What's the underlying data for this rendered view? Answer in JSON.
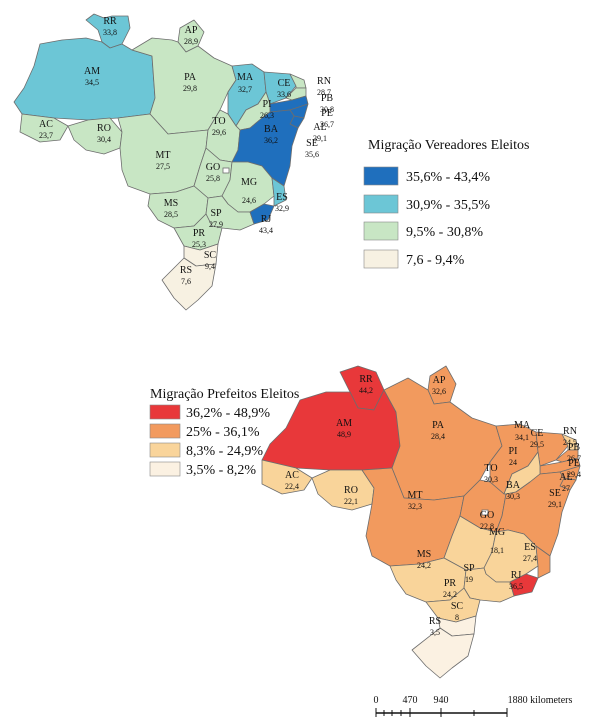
{
  "map1": {
    "title": "Migração Vereadores Eleitos",
    "colors": [
      "#1f6fbd",
      "#6cc6d6",
      "#c8e6c4",
      "#f7f1e2"
    ],
    "legend": [
      {
        "label": "35,6% - 43,4%",
        "color": "#1f6fbd"
      },
      {
        "label": "30,9% - 35,5%",
        "color": "#6cc6d6"
      },
      {
        "label": "9,5% - 30,8%",
        "color": "#c8e6c4"
      },
      {
        "label": "7,6 - 9,4%",
        "color": "#f7f1e2"
      }
    ],
    "states": {
      "RR": {
        "value": "33,8",
        "cls": 1
      },
      "AP": {
        "value": "28,9",
        "cls": 2
      },
      "AM": {
        "value": "34,5",
        "cls": 1
      },
      "PA": {
        "value": "29,8",
        "cls": 2
      },
      "MA": {
        "value": "32,7",
        "cls": 1
      },
      "CE": {
        "value": "33,6",
        "cls": 1
      },
      "RN": {
        "value": "28,7",
        "cls": 2
      },
      "PB": {
        "value": "30,8",
        "cls": 2
      },
      "PE": {
        "value": "36,7",
        "cls": 0
      },
      "AL": {
        "value": "39,1",
        "cls": 0
      },
      "SE": {
        "value": "35,6",
        "cls": 0
      },
      "PI": {
        "value": "26,3",
        "cls": 2
      },
      "AC": {
        "value": "23,7",
        "cls": 2
      },
      "RO": {
        "value": "30,4",
        "cls": 2
      },
      "MT": {
        "value": "27,5",
        "cls": 2
      },
      "TO": {
        "value": "29,6",
        "cls": 2
      },
      "BA": {
        "value": "36,2",
        "cls": 0
      },
      "GO": {
        "value": "25,8",
        "cls": 2
      },
      "MG": {
        "value": "24,6",
        "cls": 2
      },
      "ES": {
        "value": "32,9",
        "cls": 1
      },
      "MS": {
        "value": "28,5",
        "cls": 2
      },
      "SP": {
        "value": "27,9",
        "cls": 2
      },
      "RJ": {
        "value": "43,4",
        "cls": 0
      },
      "PR": {
        "value": "25,3",
        "cls": 2
      },
      "SC": {
        "value": "9,4",
        "cls": 3
      },
      "RS": {
        "value": "7,6",
        "cls": 3
      }
    }
  },
  "map2": {
    "title": "Migração Prefeitos Eleitos",
    "colors": [
      "#e8383a",
      "#f29a5e",
      "#f9d49a",
      "#fbf1e2"
    ],
    "legend": [
      {
        "label": "36,2% - 48,9%",
        "color": "#e8383a"
      },
      {
        "label": "25% - 36,1%",
        "color": "#f29a5e"
      },
      {
        "label": "8,3% - 24,9%",
        "color": "#f9d49a"
      },
      {
        "label": "3,5% - 8,2%",
        "color": "#fbf1e2"
      }
    ],
    "states": {
      "RR": {
        "value": "44,2",
        "cls": 0
      },
      "AP": {
        "value": "32,6",
        "cls": 1
      },
      "AM": {
        "value": "48,9",
        "cls": 0
      },
      "PA": {
        "value": "28,4",
        "cls": 1
      },
      "MA": {
        "value": "34,1",
        "cls": 1
      },
      "CE": {
        "value": "29,5",
        "cls": 1
      },
      "RN": {
        "value": "24,5",
        "cls": 2
      },
      "PB": {
        "value": "26,7",
        "cls": 1
      },
      "PE": {
        "value": "29,4",
        "cls": 1
      },
      "AL": {
        "value": "27",
        "cls": 1
      },
      "SE": {
        "value": "29,1",
        "cls": 1
      },
      "PI": {
        "value": "24",
        "cls": 2
      },
      "AC": {
        "value": "22,4",
        "cls": 2
      },
      "RO": {
        "value": "22,1",
        "cls": 2
      },
      "MT": {
        "value": "32,3",
        "cls": 1
      },
      "TO": {
        "value": "30,3",
        "cls": 1
      },
      "BA": {
        "value": "30,3",
        "cls": 1
      },
      "GO": {
        "value": "22,8",
        "cls": 2
      },
      "MG": {
        "value": "18,1",
        "cls": 2
      },
      "ES": {
        "value": "27,4",
        "cls": 1
      },
      "MS": {
        "value": "24,2",
        "cls": 2
      },
      "SP": {
        "value": "19",
        "cls": 2
      },
      "RJ": {
        "value": "36,5",
        "cls": 0
      },
      "PR": {
        "value": "24,2",
        "cls": 2
      },
      "SC": {
        "value": "8",
        "cls": 3
      },
      "RS": {
        "value": "3,5",
        "cls": 3
      }
    }
  },
  "scale": {
    "ticks": [
      "0",
      "470",
      "940",
      "1880 kilometers"
    ]
  }
}
